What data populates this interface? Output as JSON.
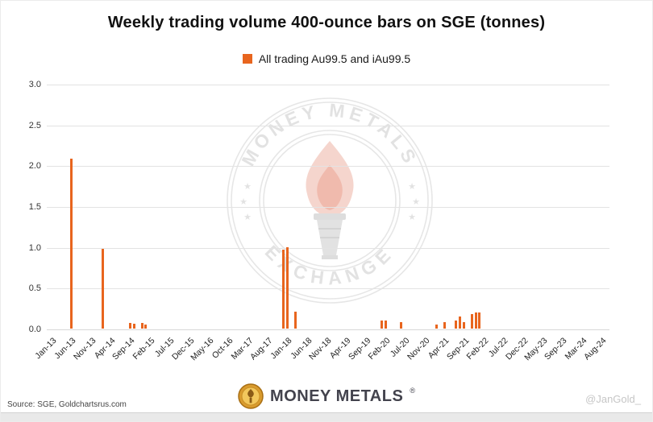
{
  "chart_data": {
    "type": "bar",
    "title": "Weekly trading volume 400-ounce bars on SGE (tonnes)",
    "legend": "All trading Au99.5 and iAu99.5",
    "legend_position": "top",
    "bar_color": "#E8651E",
    "grid": true,
    "ylim": [
      0,
      3.0
    ],
    "yticks": [
      0,
      0.5,
      1.0,
      1.5,
      2.0,
      2.5,
      3.0
    ],
    "xtick_labels": [
      "Jan-13",
      "Jun-13",
      "Nov-13",
      "Apr-14",
      "Sep-14",
      "Feb-15",
      "Jul-15",
      "Dec-15",
      "May-16",
      "Oct-16",
      "Mar-17",
      "Aug-17",
      "Jan-18",
      "Jun-18",
      "Nov-18",
      "Apr-19",
      "Sep-19",
      "Feb-20",
      "Jul-20",
      "Nov-20",
      "Apr-21",
      "Sep-21",
      "Feb-22",
      "Jul-22",
      "Dec-22",
      "May-23",
      "Sep-23",
      "Mar-24",
      "Aug-24"
    ],
    "months_per_tick": 5,
    "bars": [
      {
        "month": "Jun-13",
        "value": 2.08
      },
      {
        "month": "Feb-14",
        "value": 0.98
      },
      {
        "month": "Sep-14",
        "value": 0.07
      },
      {
        "month": "Oct-14",
        "value": 0.06
      },
      {
        "month": "Dec-14",
        "value": 0.07
      },
      {
        "month": "Jan-15",
        "value": 0.05
      },
      {
        "month": "Dec-17",
        "value": 0.97
      },
      {
        "month": "Jan-18",
        "value": 1.0
      },
      {
        "month": "Mar-18",
        "value": 0.21
      },
      {
        "month": "Jan-20",
        "value": 0.1
      },
      {
        "month": "Feb-20",
        "value": 0.1
      },
      {
        "month": "Jun-20",
        "value": 0.08
      },
      {
        "month": "Mar-21",
        "value": 0.05
      },
      {
        "month": "May-21",
        "value": 0.08
      },
      {
        "month": "Aug-21",
        "value": 0.1
      },
      {
        "month": "Sep-21",
        "value": 0.15
      },
      {
        "month": "Oct-21",
        "value": 0.08
      },
      {
        "month": "Dec-21",
        "value": 0.18
      },
      {
        "month": "Jan-22",
        "value": 0.2
      },
      {
        "month": "Feb-22",
        "value": 0.2
      }
    ]
  },
  "watermark": {
    "top_text": "MONEY METALS",
    "bottom_text": "EXCHANGE",
    "star": "★"
  },
  "footer": {
    "source": "Source: SGE, Goldchartsrus.com",
    "logo_text": "MONEY METALS",
    "logo_reg": "®",
    "handle": "@JanGold_"
  }
}
